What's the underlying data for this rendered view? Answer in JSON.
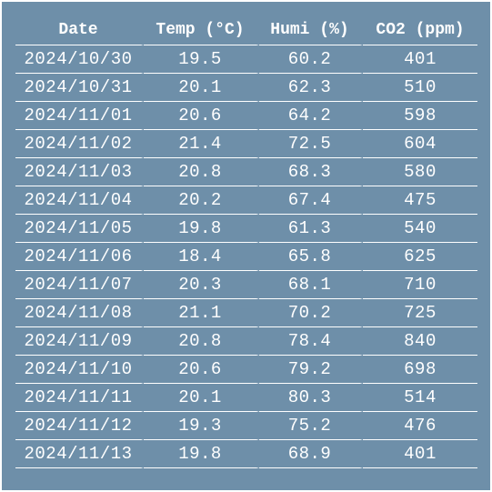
{
  "table": {
    "headers": [
      "Date",
      "Temp (°C)",
      "Humi (%)",
      "CO2 (ppm)"
    ],
    "rows": [
      [
        "2024/10/30",
        "19.5",
        "60.2",
        "401"
      ],
      [
        "2024/10/31",
        "20.1",
        "62.3",
        "510"
      ],
      [
        "2024/11/01",
        "20.6",
        "64.2",
        "598"
      ],
      [
        "2024/11/02",
        "21.4",
        "72.5",
        "604"
      ],
      [
        "2024/11/03",
        "20.8",
        "68.3",
        "580"
      ],
      [
        "2024/11/04",
        "20.2",
        "67.4",
        "475"
      ],
      [
        "2024/11/05",
        "19.8",
        "61.3",
        "540"
      ],
      [
        "2024/11/06",
        "18.4",
        "65.8",
        "625"
      ],
      [
        "2024/11/07",
        "20.3",
        "68.1",
        "710"
      ],
      [
        "2024/11/08",
        "21.1",
        "70.2",
        "725"
      ],
      [
        "2024/11/09",
        "20.8",
        "78.4",
        "840"
      ],
      [
        "2024/11/10",
        "20.6",
        "79.2",
        "698"
      ],
      [
        "2024/11/11",
        "20.1",
        "80.3",
        "514"
      ],
      [
        "2024/11/12",
        "19.3",
        "75.2",
        "476"
      ],
      [
        "2024/11/13",
        "19.8",
        "68.9",
        "401"
      ]
    ]
  },
  "colors": {
    "background": "#6e8fa9",
    "text": "#ffffff",
    "rule": "#ffffff"
  }
}
